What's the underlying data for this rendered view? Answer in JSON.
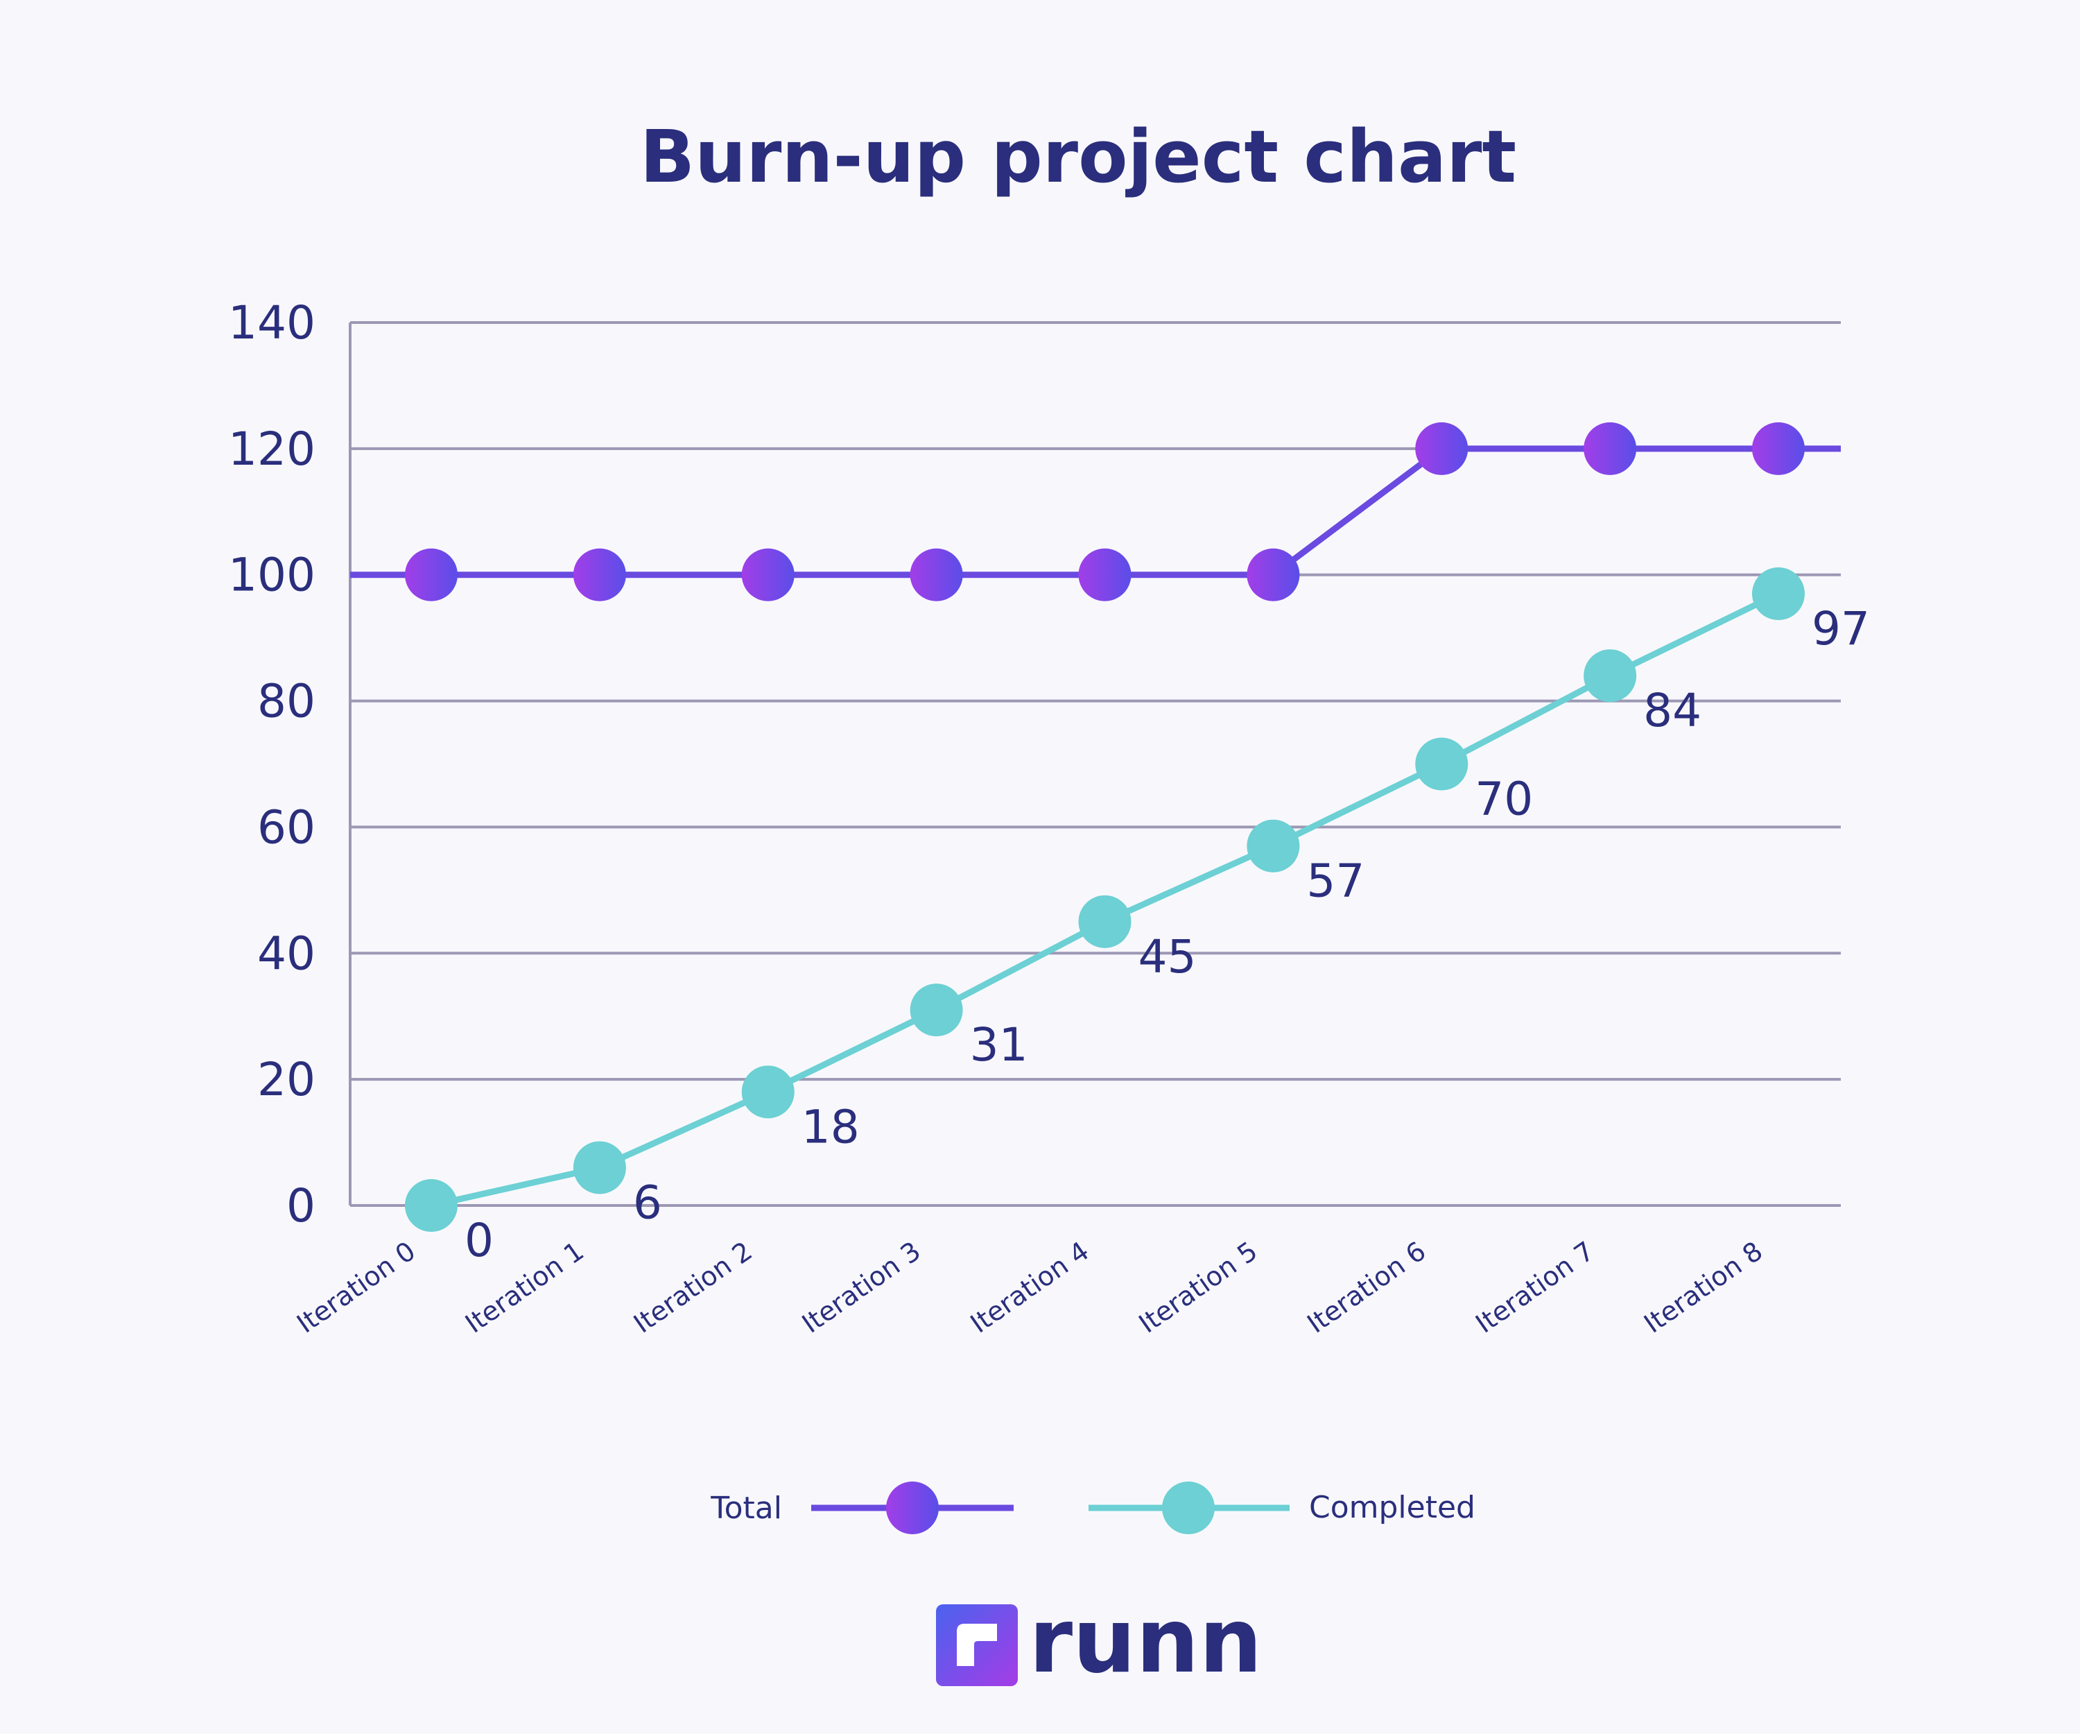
{
  "colors": {
    "background": "#f8f8fc",
    "text": "#2a2e7c",
    "grid": "#9c98b4",
    "total_line": "#6a4ae0",
    "total_marker_start": "#a23ee8",
    "total_marker_end": "#5a4ee8",
    "completed_line": "#6cd0d4",
    "completed_marker": "#6cd0d4"
  },
  "chart_data": {
    "type": "line",
    "title": "Burn-up project chart",
    "categories": [
      "Iteration 0",
      "Iteration 1",
      "Iteration 2",
      "Iteration 3",
      "Iteration 4",
      "Iteration 5",
      "Iteration 6",
      "Iteration 7",
      "Iteration 8"
    ],
    "ylim": [
      0,
      140
    ],
    "yticks": [
      0,
      20,
      40,
      60,
      80,
      100,
      120,
      140
    ],
    "grid": true,
    "legend_position": "bottom-center",
    "series": [
      {
        "name": "Total",
        "values": [
          100,
          100,
          100,
          100,
          100,
          100,
          120,
          120,
          120
        ],
        "data_labels": false
      },
      {
        "name": "Completed",
        "values": [
          0,
          6,
          18,
          31,
          45,
          57,
          70,
          84,
          97
        ],
        "data_labels": true
      }
    ]
  },
  "logo": {
    "mark_icon": "runn-logo-icon",
    "text": "runn"
  }
}
